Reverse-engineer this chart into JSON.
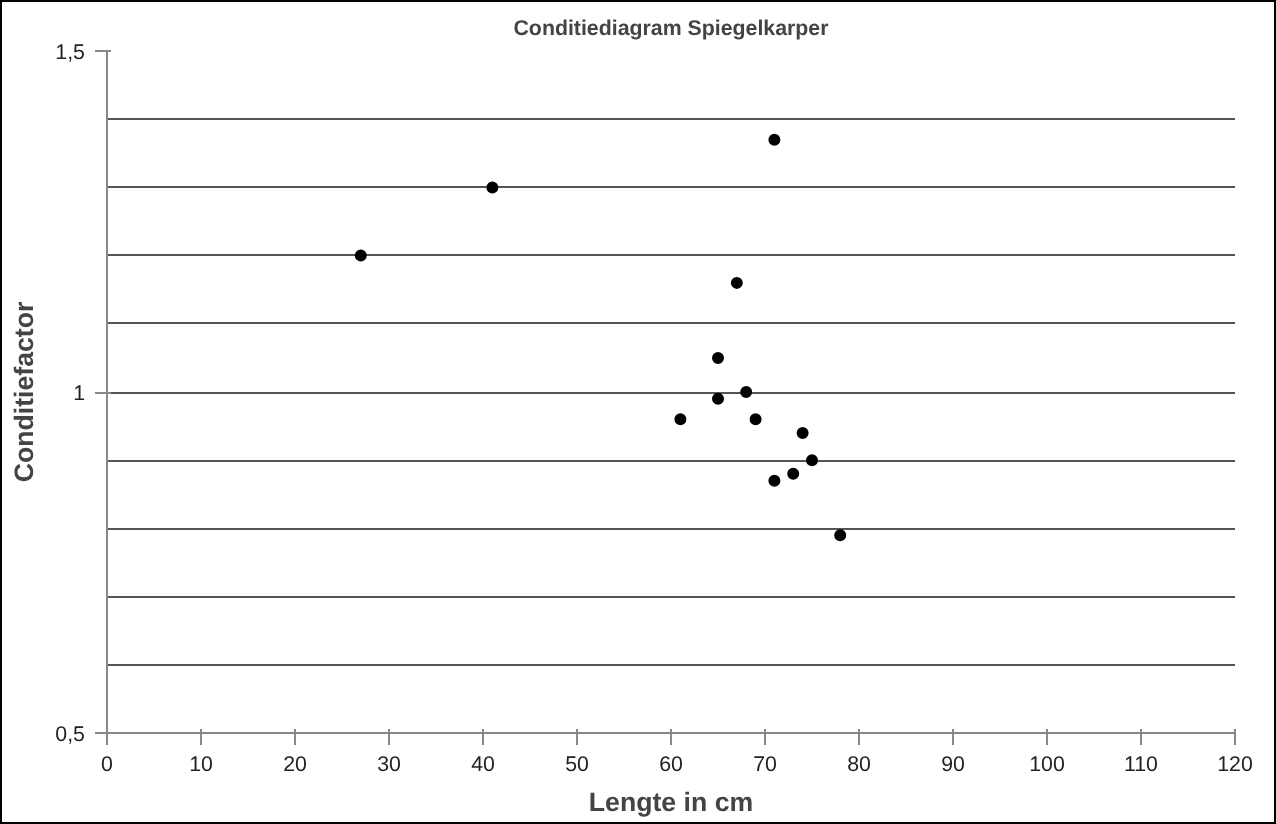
{
  "chart_data": {
    "type": "scatter",
    "title": "Conditiediagram Spiegelkarper",
    "xlabel": "Lengte in cm",
    "ylabel": "Conditiefactor",
    "x": [
      27,
      41,
      71,
      67,
      65,
      65,
      68,
      61,
      69,
      74,
      75,
      73,
      71,
      78
    ],
    "series": [
      {
        "color": "#000000",
        "values": [
          1.2,
          1.3,
          1.37,
          1.16,
          1.05,
          0.99,
          1.0,
          0.96,
          0.96,
          0.94,
          0.9,
          0.88,
          0.87,
          0.79
        ]
      }
    ],
    "xlim": [
      0,
      120
    ],
    "xticks": [
      0,
      10,
      20,
      30,
      40,
      50,
      60,
      70,
      80,
      90,
      100,
      110,
      120
    ],
    "ylim": [
      0.5,
      1.5
    ],
    "yticks": [
      {
        "value": 0.5,
        "label": "0,5"
      },
      {
        "value": 0.6,
        "label": null
      },
      {
        "value": 0.7,
        "label": null
      },
      {
        "value": 0.8,
        "label": null
      },
      {
        "value": 0.9,
        "label": null
      },
      {
        "value": 1,
        "label": "1"
      },
      {
        "value": 1.1,
        "label": null
      },
      {
        "value": 1.2,
        "label": null
      },
      {
        "value": 1.3,
        "label": null
      },
      {
        "value": 1.4,
        "label": null
      },
      {
        "value": 1.5,
        "label": "1,5"
      }
    ],
    "grid": "y",
    "marker": "circle"
  }
}
